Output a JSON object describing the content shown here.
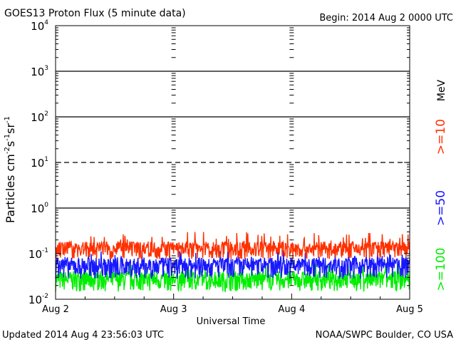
{
  "header": {
    "title": "GOES13 Proton Flux (5 minute data)",
    "begin": "Begin: 2014 Aug 2 0000 UTC"
  },
  "footer": {
    "updated": "Updated 2014 Aug  4 23:56:03 UTC",
    "credit": "NOAA/SWPC Boulder, CO USA"
  },
  "chart_data": {
    "type": "line",
    "title": "GOES13 Proton Flux (5 minute data)",
    "xlabel": "Universal Time",
    "ylabel": "Particles cm⁻²s⁻¹sr⁻¹",
    "ylabel_parts": {
      "main": "Particles cm",
      "e1": "-2",
      "s": "s",
      "e2": "-1",
      "sr": "sr",
      "e3": "-1"
    },
    "yscale": "log",
    "ylim": [
      0.01,
      10000
    ],
    "y_ticks": [
      {
        "value": 0.01,
        "base": "10",
        "exp": "-2"
      },
      {
        "value": 0.1,
        "base": "10",
        "exp": "-1"
      },
      {
        "value": 1,
        "base": "10",
        "exp": "0"
      },
      {
        "value": 10,
        "base": "10",
        "exp": "1"
      },
      {
        "value": 100,
        "base": "10",
        "exp": "2"
      },
      {
        "value": 1000,
        "base": "10",
        "exp": "3"
      },
      {
        "value": 10000,
        "base": "10",
        "exp": "4"
      }
    ],
    "x_tick_labels": [
      "Aug 2",
      "Aug 3",
      "Aug 4",
      "Aug 5"
    ],
    "xlim_days": [
      0,
      3
    ],
    "unit_label": "MeV",
    "reference_lines": [
      {
        "value": 10,
        "style": "dashed"
      },
      {
        "value": 1,
        "style": "solid"
      },
      {
        "value": 100,
        "style": "solid"
      },
      {
        "value": 1000,
        "style": "solid"
      }
    ],
    "series": [
      {
        "name": ">=10",
        "color": "#ff3000",
        "base": 0.13,
        "amp": 0.09,
        "spike_max": 0.3
      },
      {
        "name": ">=50",
        "color": "#1818ff",
        "base": 0.055,
        "amp": 0.045,
        "spike_max": 0.12
      },
      {
        "name": ">=100",
        "color": "#00ee00",
        "base": 0.028,
        "amp": 0.022,
        "spike_max": 0.06
      }
    ],
    "legend_position": "right"
  }
}
